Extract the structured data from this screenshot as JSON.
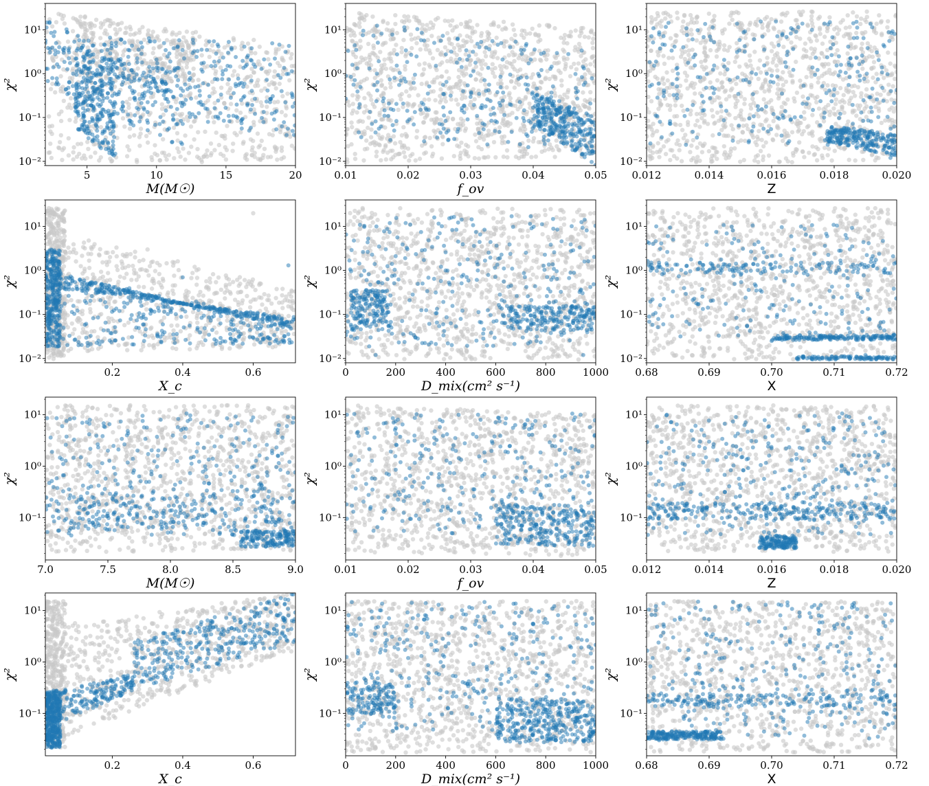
{
  "colors": {
    "grey": "#c8c8c8",
    "blue": "#1f77b4"
  },
  "chart_data": [
    {
      "type": "scatter",
      "row": 0,
      "col": 0,
      "xlabel": "M(M☉)",
      "ylabel": "χ²",
      "xlim": [
        2,
        20
      ],
      "xticks": [
        5,
        10,
        15,
        20
      ],
      "xticklabels": [
        "5",
        "10",
        "15",
        "20"
      ],
      "yscale": "log",
      "ylim": [
        0.008,
        40
      ],
      "yticks": [
        0.01,
        0.1,
        1,
        10
      ],
      "yticklabels": [
        "10⁻²",
        "10⁻¹",
        "10⁰",
        "10¹"
      ],
      "grey_points": [
        [
          2.5,
          12
        ],
        [
          3,
          5
        ],
        [
          4,
          2
        ],
        [
          5,
          0.4
        ],
        [
          6,
          0.06
        ],
        [
          8,
          0.2
        ],
        [
          12,
          0.3
        ],
        [
          18,
          1
        ],
        [
          3,
          0.02
        ],
        [
          7,
          0.5
        ]
      ],
      "blue_points": [
        [
          2.3,
          15
        ],
        [
          3,
          4
        ],
        [
          4,
          1
        ],
        [
          4.8,
          0.08
        ],
        [
          5.5,
          0.03
        ],
        [
          6,
          0.02
        ],
        [
          8,
          0.9
        ],
        [
          12,
          0.2
        ],
        [
          16,
          0.6
        ],
        [
          19,
          0.4
        ]
      ]
    },
    {
      "type": "scatter",
      "row": 0,
      "col": 1,
      "xlabel": "f_ov",
      "ylabel": "χ²",
      "xlim": [
        0.01,
        0.05
      ],
      "xticks": [
        0.01,
        0.02,
        0.03,
        0.04,
        0.05
      ],
      "xticklabels": [
        "0.01",
        "0.02",
        "0.03",
        "0.04",
        "0.05"
      ],
      "yscale": "log",
      "ylim": [
        0.008,
        40
      ],
      "yticks": [
        0.01,
        0.1,
        1,
        10
      ],
      "yticklabels": [
        "10⁻²",
        "10⁻¹",
        "10⁰",
        "10¹"
      ],
      "grey_points": [
        [
          0.012,
          0.05
        ],
        [
          0.02,
          20
        ],
        [
          0.03,
          2
        ],
        [
          0.04,
          0.5
        ],
        [
          0.048,
          3
        ]
      ],
      "blue_points": [
        [
          0.015,
          1
        ],
        [
          0.022,
          0.15
        ],
        [
          0.03,
          0.9
        ],
        [
          0.045,
          0.03
        ],
        [
          0.049,
          0.015
        ]
      ]
    },
    {
      "type": "scatter",
      "row": 0,
      "col": 2,
      "xlabel": "Z",
      "ylabel": "χ²",
      "xlim": [
        0.012,
        0.02
      ],
      "xticks": [
        0.012,
        0.014,
        0.016,
        0.018,
        0.02
      ],
      "xticklabels": [
        "0.012",
        "0.014",
        "0.016",
        "0.018",
        "0.020"
      ],
      "yscale": "log",
      "ylim": [
        0.008,
        40
      ],
      "yticks": [
        0.01,
        0.1,
        1,
        10
      ],
      "yticklabels": [
        "10⁻²",
        "10⁻¹",
        "10⁰",
        "10¹"
      ],
      "grey_points": [
        [
          0.013,
          0.03
        ],
        [
          0.015,
          10
        ],
        [
          0.017,
          0.3
        ],
        [
          0.019,
          2
        ]
      ],
      "blue_points": [
        [
          0.013,
          1
        ],
        [
          0.016,
          0.9
        ],
        [
          0.018,
          0.05
        ],
        [
          0.0195,
          0.03
        ],
        [
          0.0198,
          0.012
        ]
      ]
    },
    {
      "type": "scatter",
      "row": 1,
      "col": 0,
      "xlabel": "X_c",
      "ylabel": "χ²",
      "xlim": [
        0.01,
        0.72
      ],
      "xticks": [
        0.2,
        0.4,
        0.6
      ],
      "xticklabels": [
        "0.2",
        "0.4",
        "0.6"
      ],
      "yscale": "log",
      "ylim": [
        0.008,
        40
      ],
      "yticks": [
        0.01,
        0.1,
        1,
        10
      ],
      "yticklabels": [
        "10⁻²",
        "10⁻¹",
        "10⁰",
        "10¹"
      ],
      "grey_points": [
        [
          0.03,
          10
        ],
        [
          0.1,
          0.5
        ],
        [
          0.3,
          3
        ],
        [
          0.6,
          20
        ],
        [
          0.05,
          0.02
        ]
      ],
      "blue_points": [
        [
          0.02,
          0.05
        ],
        [
          0.05,
          0.3
        ],
        [
          0.2,
          0.3
        ],
        [
          0.4,
          0.7
        ],
        [
          0.7,
          1.3
        ]
      ]
    },
    {
      "type": "scatter",
      "row": 1,
      "col": 1,
      "xlabel": "D_mix(cm² s⁻¹)",
      "ylabel": "χ²",
      "xlim": [
        0,
        1000
      ],
      "xticks": [
        0,
        200,
        400,
        600,
        800,
        1000
      ],
      "xticklabels": [
        "0",
        "200",
        "400",
        "600",
        "800",
        "1000"
      ],
      "yscale": "log",
      "ylim": [
        0.008,
        40
      ],
      "yticks": [
        0.01,
        0.1,
        1,
        10
      ],
      "yticklabels": [
        "10⁻²",
        "10⁻¹",
        "10⁰",
        "10¹"
      ],
      "grey_points": [
        [
          50,
          20
        ],
        [
          300,
          1
        ],
        [
          600,
          0.02
        ],
        [
          900,
          5
        ]
      ],
      "blue_points": [
        [
          100,
          0.03
        ],
        [
          120,
          0.012
        ],
        [
          400,
          1
        ],
        [
          800,
          0.05
        ],
        [
          950,
          0.012
        ]
      ]
    },
    {
      "type": "scatter",
      "row": 1,
      "col": 2,
      "xlabel": "X",
      "ylabel": "χ²",
      "xlim": [
        0.68,
        0.72
      ],
      "xticks": [
        0.68,
        0.69,
        0.7,
        0.71,
        0.72
      ],
      "xticklabels": [
        "0.68",
        "0.69",
        "0.70",
        "0.71",
        "0.72"
      ],
      "yscale": "log",
      "ylim": [
        0.008,
        40
      ],
      "yticks": [
        0.01,
        0.1,
        1,
        10
      ],
      "yticklabels": [
        "10⁻²",
        "10⁻¹",
        "10⁰",
        "10¹"
      ],
      "grey_points": [
        [
          0.685,
          20
        ],
        [
          0.7,
          0.3
        ],
        [
          0.715,
          0.015
        ]
      ],
      "blue_points": [
        [
          0.69,
          1
        ],
        [
          0.7,
          0.025
        ],
        [
          0.71,
          0.03
        ],
        [
          0.715,
          0.012
        ]
      ]
    },
    {
      "type": "scatter",
      "row": 2,
      "col": 0,
      "xlabel": "M(M☉)",
      "ylabel": "χ²",
      "xlim": [
        7,
        9
      ],
      "xticks": [
        7,
        7.5,
        8,
        8.5,
        9
      ],
      "xticklabels": [
        "7.0",
        "7.5",
        "8.0",
        "8.5",
        "9.0"
      ],
      "yscale": "log",
      "ylim": [
        0.015,
        22
      ],
      "yticks": [
        0.1,
        1,
        10
      ],
      "yticklabels": [
        "10⁻¹",
        "10⁰",
        "10¹"
      ],
      "grey_points": [
        [
          7.2,
          15
        ],
        [
          8,
          0.5
        ],
        [
          8.6,
          0.025
        ]
      ],
      "blue_points": [
        [
          7.5,
          2
        ],
        [
          8,
          0.08
        ],
        [
          8.9,
          0.03
        ]
      ]
    },
    {
      "type": "scatter",
      "row": 2,
      "col": 1,
      "xlabel": "f_ov",
      "ylabel": "χ²",
      "xlim": [
        0.01,
        0.05
      ],
      "xticks": [
        0.01,
        0.02,
        0.03,
        0.04,
        0.05
      ],
      "xticklabels": [
        "0.01",
        "0.02",
        "0.03",
        "0.04",
        "0.05"
      ],
      "yscale": "log",
      "ylim": [
        0.015,
        22
      ],
      "yticks": [
        0.1,
        1,
        10
      ],
      "yticklabels": [
        "10⁻¹",
        "10⁰",
        "10¹"
      ],
      "grey_points": [
        [
          0.012,
          15
        ],
        [
          0.03,
          0.6
        ],
        [
          0.048,
          0.025
        ]
      ],
      "blue_points": [
        [
          0.02,
          3
        ],
        [
          0.035,
          0.2
        ],
        [
          0.047,
          0.04
        ]
      ]
    },
    {
      "type": "scatter",
      "row": 2,
      "col": 2,
      "xlabel": "Z",
      "ylabel": "χ²",
      "xlim": [
        0.012,
        0.02
      ],
      "xticks": [
        0.012,
        0.014,
        0.016,
        0.018,
        0.02
      ],
      "xticklabels": [
        "0.012",
        "0.014",
        "0.016",
        "0.018",
        "0.020"
      ],
      "yscale": "log",
      "ylim": [
        0.015,
        22
      ],
      "yticks": [
        0.1,
        1,
        10
      ],
      "yticklabels": [
        "10⁻¹",
        "10⁰",
        "10¹"
      ],
      "grey_points": [
        [
          0.013,
          15
        ],
        [
          0.016,
          0.5
        ],
        [
          0.019,
          0.03
        ]
      ],
      "blue_points": [
        [
          0.014,
          3
        ],
        [
          0.016,
          0.03
        ],
        [
          0.0195,
          0.1
        ]
      ]
    },
    {
      "type": "scatter",
      "row": 3,
      "col": 0,
      "xlabel": "X_c",
      "ylabel": "χ²",
      "xlim": [
        0.01,
        0.72
      ],
      "xticks": [
        0.2,
        0.4,
        0.6
      ],
      "xticklabels": [
        "0.2",
        "0.4",
        "0.6"
      ],
      "yscale": "log",
      "ylim": [
        0.015,
        22
      ],
      "yticks": [
        0.1,
        1,
        10
      ],
      "yticklabels": [
        "10⁻¹",
        "10⁰",
        "10¹"
      ],
      "grey_points": [
        [
          0.03,
          5
        ],
        [
          0.1,
          0.3
        ],
        [
          0.3,
          2
        ],
        [
          0.6,
          15
        ]
      ],
      "blue_points": [
        [
          0.02,
          0.03
        ],
        [
          0.03,
          0.1
        ],
        [
          0.2,
          0.2
        ],
        [
          0.4,
          1.5
        ],
        [
          0.7,
          8
        ]
      ]
    },
    {
      "type": "scatter",
      "row": 3,
      "col": 1,
      "xlabel": "D_mix(cm² s⁻¹)",
      "ylabel": "χ²",
      "xlim": [
        0,
        1000
      ],
      "xticks": [
        0,
        200,
        400,
        600,
        800,
        1000
      ],
      "xticklabels": [
        "0",
        "200",
        "400",
        "600",
        "800",
        "1000"
      ],
      "yscale": "log",
      "ylim": [
        0.015,
        22
      ],
      "yticks": [
        0.1,
        1,
        10
      ],
      "yticklabels": [
        "10⁻¹",
        "10⁰",
        "10¹"
      ],
      "grey_points": [
        [
          50,
          15
        ],
        [
          320,
          0.02
        ],
        [
          700,
          1
        ],
        [
          950,
          0.03
        ]
      ],
      "blue_points": [
        [
          50,
          0.2
        ],
        [
          400,
          2
        ],
        [
          800,
          0.05
        ],
        [
          950,
          0.03
        ]
      ]
    },
    {
      "type": "scatter",
      "row": 3,
      "col": 2,
      "xlabel": "X",
      "ylabel": "χ²",
      "xlim": [
        0.68,
        0.72
      ],
      "xticks": [
        0.68,
        0.69,
        0.7,
        0.71,
        0.72
      ],
      "xticklabels": [
        "0.68",
        "0.69",
        "0.70",
        "0.71",
        "0.72"
      ],
      "yscale": "log",
      "ylim": [
        0.015,
        22
      ],
      "yticks": [
        0.1,
        1,
        10
      ],
      "yticklabels": [
        "10⁻¹",
        "10⁰",
        "10¹"
      ],
      "grey_points": [
        [
          0.685,
          15
        ],
        [
          0.7,
          0.5
        ],
        [
          0.715,
          0.025
        ]
      ],
      "blue_points": [
        [
          0.682,
          0.03
        ],
        [
          0.7,
          0.1
        ],
        [
          0.71,
          5
        ]
      ]
    }
  ]
}
